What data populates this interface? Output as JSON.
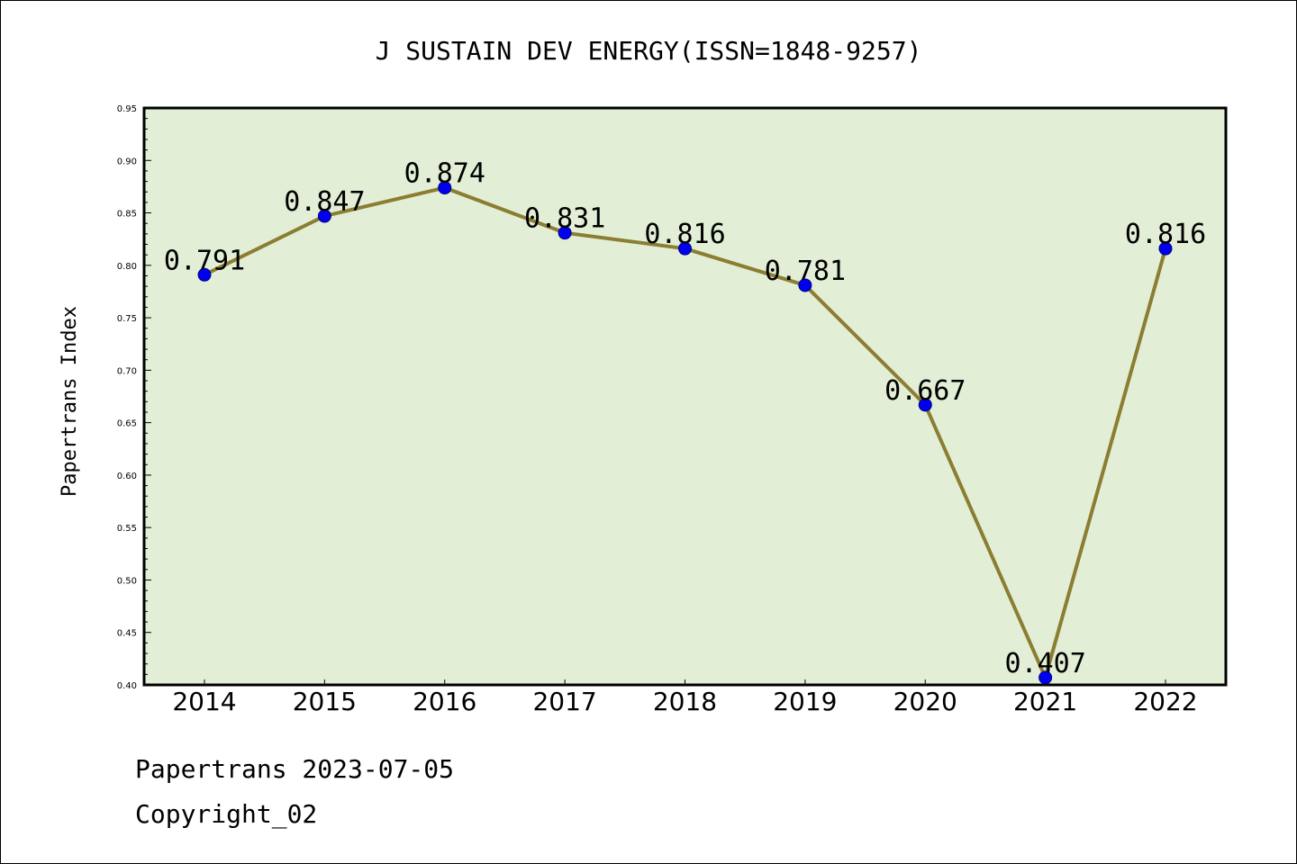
{
  "chart_data": {
    "type": "line",
    "title": "J SUSTAIN DEV ENERGY(ISSN=1848-9257)",
    "xlabel": "",
    "ylabel": "Papertrans Index",
    "categories": [
      "2014",
      "2015",
      "2016",
      "2017",
      "2018",
      "2019",
      "2020",
      "2021",
      "2022"
    ],
    "series": [
      {
        "values": [
          0.791,
          0.847,
          0.874,
          0.831,
          0.816,
          0.781,
          0.667,
          0.407,
          0.816
        ],
        "labels": [
          "0.791",
          "0.847",
          "0.874",
          "0.831",
          "0.816",
          "0.781",
          "0.667",
          "0.407",
          "0.816"
        ]
      }
    ],
    "ylim": [
      0.4,
      0.95
    ],
    "yticks": [
      "0.40",
      "0.45",
      "0.50",
      "0.55",
      "0.60",
      "0.65",
      "0.70",
      "0.75",
      "0.80",
      "0.85",
      "0.90",
      "0.95"
    ],
    "grid": false,
    "legend": "none"
  },
  "footer": {
    "line1": "Papertrans 2023-07-05",
    "line2": "Copyright_02"
  },
  "colors": {
    "plot_background": "#e2efd6",
    "line": "#8b7d32",
    "marker": "#0000ee",
    "marker_edge": "#00008b"
  }
}
